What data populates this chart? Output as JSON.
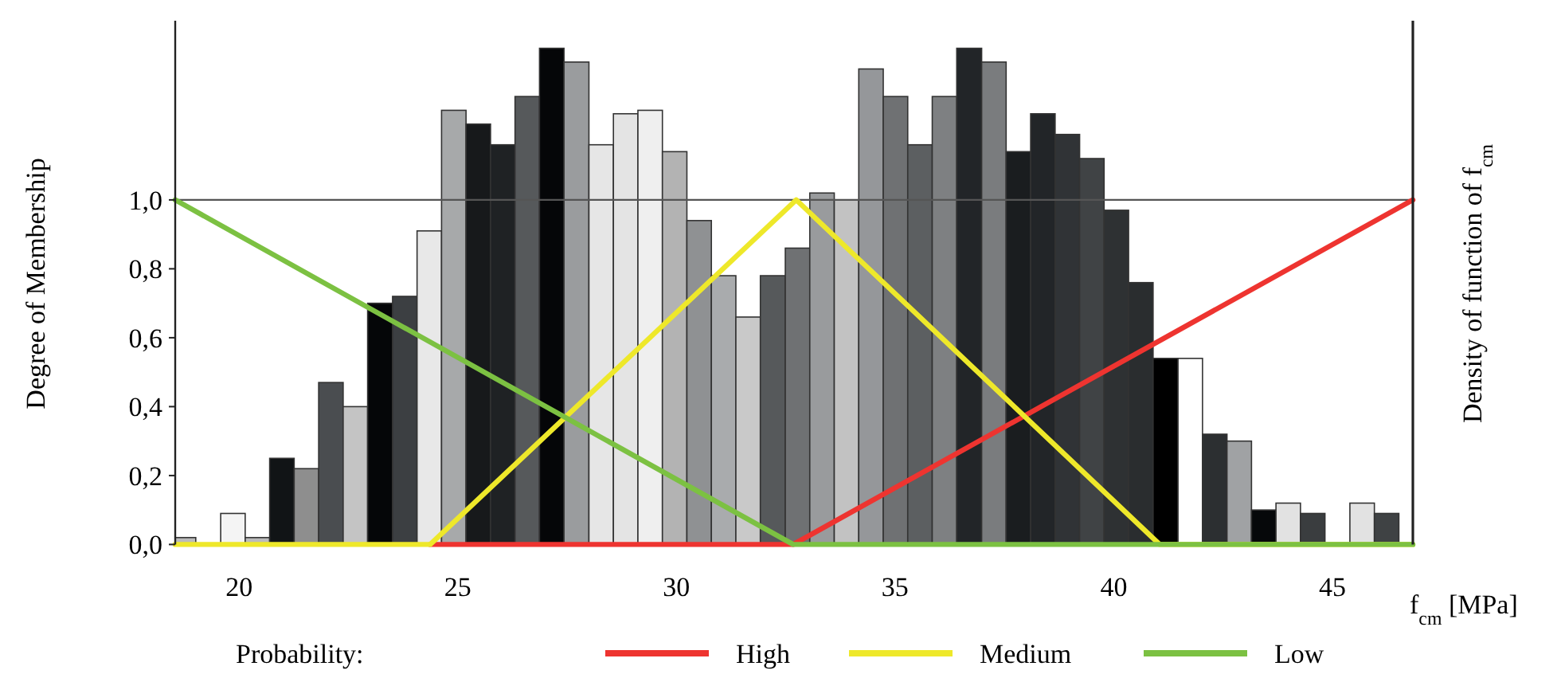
{
  "chart_data": {
    "type": "histogram",
    "ylabel": "Degree of Membership",
    "y2label": "Density of function of f$_{cm}$",
    "xlabel": "f$_{cm}$ [MPa]",
    "legend_title": "Probability:",
    "legend": "bottom",
    "xlim": [
      18.54,
      46.84
    ],
    "xticks": [
      20,
      25,
      30,
      35,
      40,
      45
    ],
    "ylim": [
      0,
      1.52
    ],
    "yticks": [
      {
        "value": 0,
        "label": "0,0"
      },
      {
        "value": 0.2,
        "label": "0,2"
      },
      {
        "value": 0.4,
        "label": "0,4"
      },
      {
        "value": 0.6,
        "label": "0,6"
      },
      {
        "value": 0.8,
        "label": "0,8"
      },
      {
        "value": 1,
        "label": "1,0"
      }
    ],
    "ref_lines": [
      {
        "axis": "y",
        "value": 1,
        "color": "#555555"
      }
    ],
    "series": [
      {
        "bins": [
          18.54,
          19.01,
          19.58,
          20.14,
          20.7,
          21.26,
          21.82,
          22.38,
          22.94,
          23.51,
          24.07,
          24.63,
          25.19,
          25.75,
          26.31,
          26.87,
          27.43,
          28.0,
          28.56,
          29.12,
          29.68,
          30.24,
          30.8,
          31.36,
          31.92,
          32.49,
          33.05,
          33.61,
          34.17,
          34.73,
          35.29,
          35.85,
          36.41,
          36.98,
          37.54,
          38.1,
          38.66,
          39.22,
          39.78,
          40.34,
          40.9,
          41.47,
          42.03,
          42.59,
          43.15,
          43.71,
          44.27,
          44.83,
          45.4,
          45.96,
          46.52
        ],
        "values": [
          0.02,
          0,
          0.09,
          0.02,
          0.25,
          0.22,
          0.47,
          0.4,
          0.7,
          0.72,
          0.91,
          1.26,
          1.22,
          1.16,
          1.3,
          1.44,
          1.4,
          1.16,
          1.25,
          1.26,
          1.14,
          0.94,
          0.78,
          0.66,
          0.78,
          0.86,
          1.02,
          1.0,
          1.38,
          1.3,
          1.16,
          1.3,
          1.44,
          1.4,
          1.14,
          1.25,
          1.19,
          1.12,
          0.97,
          0.76,
          0.54,
          0.54,
          0.32,
          0.3,
          0.1,
          0.12,
          0.09,
          0,
          0.12,
          0.09
        ],
        "colors": [
          "#bbbbbb",
          "#ffffff",
          "#f4f4f4",
          "#bbbbbb",
          "#111416",
          "#8e8e8e",
          "#4a4d50",
          "#c4c4c4",
          "#050608",
          "#3c3f42",
          "#e8e8e8",
          "#a7a9aa",
          "#17191b",
          "#1f2224",
          "#56595b",
          "#050608",
          "#9a9c9e",
          "#e6e6e6",
          "#e4e4e4",
          "#efefef",
          "#b3b3b3",
          "#8f9193",
          "#a9abad",
          "#c9c9c9",
          "#56595b",
          "#6f7173",
          "#999b9d",
          "#c2c2c2",
          "#95979a",
          "#6f7173",
          "#5c5f61",
          "#7e8082",
          "#222528",
          "#7a7c7e",
          "#1a1d1f",
          "#222528",
          "#303336",
          "#404345",
          "#2e3133",
          "#2a2d2f",
          "#000000",
          "#ffffff",
          "#2c2f31",
          "#a0a2a4",
          "#06080a",
          "#e2e2e2",
          "#3a3d3f",
          "#ffffff",
          "#e2e2e2",
          "#3f4244"
        ]
      },
      {
        "type": "line",
        "name": "High",
        "color": "#ee3430",
        "x": [
          24.37,
          32.67,
          46.84
        ],
        "values": [
          0,
          0,
          1
        ]
      },
      {
        "type": "line",
        "name": "Medium",
        "color": "#eee82a",
        "x": [
          18.54,
          24.37,
          32.74,
          41.05,
          46.84
        ],
        "values": [
          0,
          0,
          1,
          0,
          0
        ]
      },
      {
        "type": "line",
        "name": "Low",
        "color": "#7cc142",
        "x": [
          18.54,
          32.67,
          46.84
        ],
        "values": [
          1,
          0,
          0
        ]
      }
    ]
  }
}
